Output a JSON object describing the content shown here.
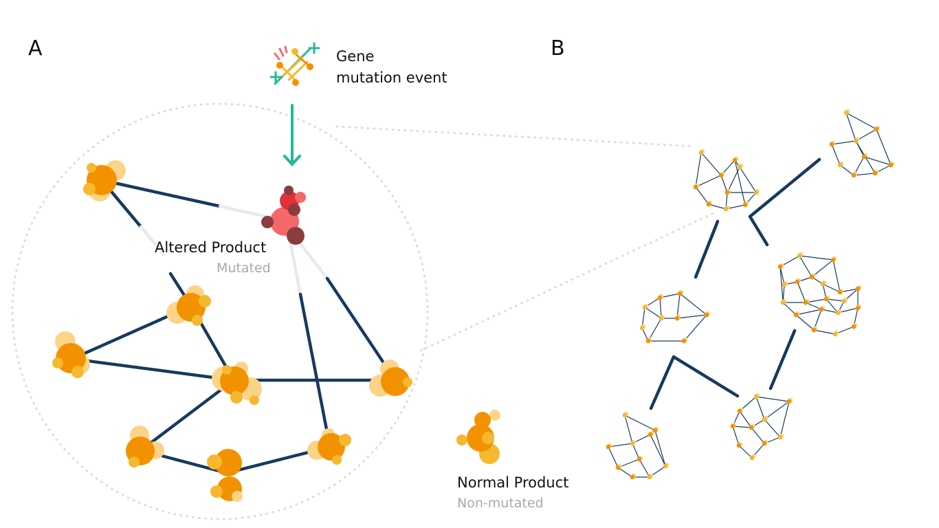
{
  "panels": {
    "a": "A",
    "b": "B"
  },
  "event": {
    "line1": "Gene",
    "line2": "mutation event"
  },
  "altered": {
    "title": "Altered Product",
    "subtitle": "Mutated"
  },
  "normal": {
    "title": "Normal Product",
    "subtitle": "Non-mutated"
  },
  "colors": {
    "edge": "#163a5f",
    "edge_fade": "#e6e9ef",
    "node_main": "#f39200",
    "node_mid": "#f5b82e",
    "node_light": "#fcd488",
    "mutated_main": "#f4686a",
    "mutated_dark": "#8b3c3c",
    "mutated_red": "#e0303a",
    "arrow": "#23b89a",
    "dotted": "#dcdcdc",
    "text": "#111111",
    "subtext": "#a8a8a8"
  },
  "icons": [
    "dna-mutation-icon",
    "down-arrow-icon"
  ]
}
